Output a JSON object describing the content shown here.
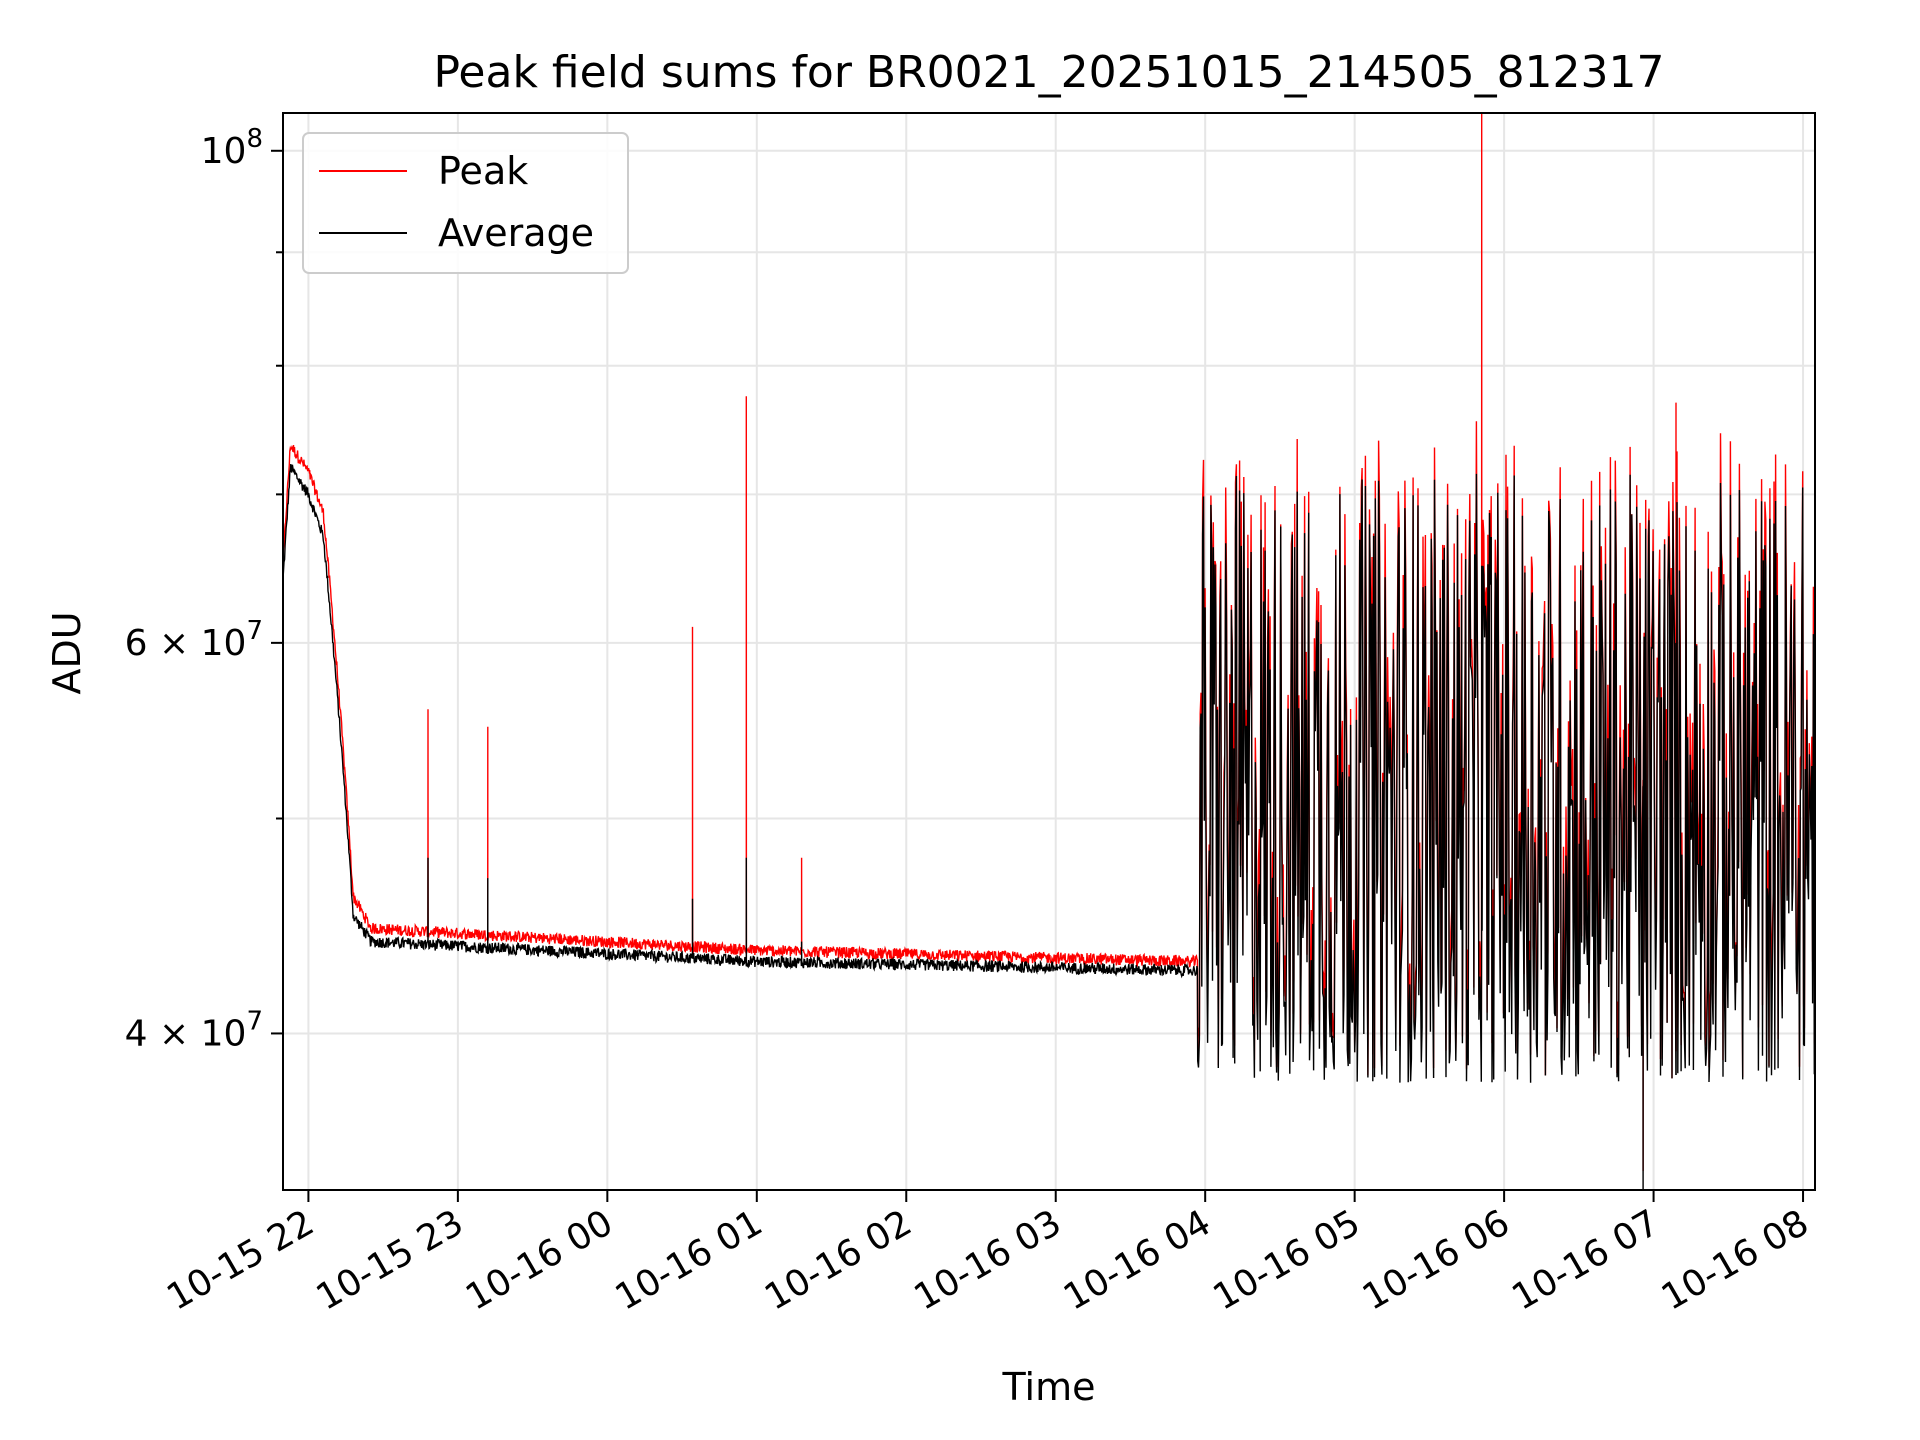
{
  "chart_data": {
    "type": "line",
    "title": "Peak field sums for BR0021_20251015_214505_812317",
    "xlabel": "Time",
    "ylabel": "ADU",
    "yscale": "log",
    "ylim": [
      34000000,
      104000000
    ],
    "xlim_hours": [
      21.83,
      32.08
    ],
    "grid": true,
    "legend_position": "upper-left",
    "x_ticks": [
      {
        "hour": 22,
        "label": "10-15 22"
      },
      {
        "hour": 23,
        "label": "10-15 23"
      },
      {
        "hour": 24,
        "label": "10-16 00"
      },
      {
        "hour": 25,
        "label": "10-16 01"
      },
      {
        "hour": 26,
        "label": "10-16 02"
      },
      {
        "hour": 27,
        "label": "10-16 03"
      },
      {
        "hour": 28,
        "label": "10-16 04"
      },
      {
        "hour": 29,
        "label": "10-16 05"
      },
      {
        "hour": 30,
        "label": "10-16 06"
      },
      {
        "hour": 31,
        "label": "10-16 07"
      },
      {
        "hour": 32,
        "label": "10-16 08"
      }
    ],
    "y_major_ticks": [
      {
        "value": 40000000,
        "mantissa": "4",
        "base": "10",
        "exp": "7",
        "times": "×"
      },
      {
        "value": 60000000,
        "mantissa": "6",
        "base": "10",
        "exp": "7",
        "times": "×"
      },
      {
        "value": 100000000,
        "mantissa": "",
        "base": "10",
        "exp": "8",
        "times": ""
      }
    ],
    "y_minor_ticks": [
      50000000,
      70000000,
      80000000,
      90000000
    ],
    "series": [
      {
        "name": "Peak",
        "color": "#ff0000"
      },
      {
        "name": "Average",
        "color": "#000000"
      }
    ],
    "key_points": [
      {
        "hour": 21.83,
        "peak": 65000000,
        "average": 64000000
      },
      {
        "hour": 21.88,
        "peak": 73500000,
        "average": 72000000
      },
      {
        "hour": 22.0,
        "peak": 71500000,
        "average": 70000000
      },
      {
        "hour": 22.1,
        "peak": 68500000,
        "average": 67000000
      },
      {
        "hour": 22.3,
        "peak": 46000000,
        "average": 45200000
      },
      {
        "hour": 22.42,
        "peak": 44500000,
        "average": 44000000
      },
      {
        "hour": 25.0,
        "peak": 43500000,
        "average": 43100000
      },
      {
        "hour": 27.9,
        "peak": 43000000,
        "average": 42700000
      }
    ],
    "peak_spikes": [
      {
        "hour": 22.8,
        "peak": 56000000,
        "average": 48000000
      },
      {
        "hour": 23.2,
        "peak": 55000000,
        "average": 47000000
      },
      {
        "hour": 24.57,
        "peak": 61000000,
        "average": 46000000
      },
      {
        "hour": 24.93,
        "peak": 77500000,
        "average": 48000000
      },
      {
        "hour": 25.3,
        "peak": 48000000,
        "average": 44000000
      },
      {
        "hour": 29.85,
        "peak": 104000000,
        "average": 65000000
      },
      {
        "hour": 31.15,
        "peak": 77000000,
        "average": 60000000
      }
    ],
    "noisy_region": {
      "start_hour": 27.95,
      "end_hour": 32.08,
      "low": 38000000,
      "high": 80000000,
      "min_dip": 34000000
    }
  }
}
